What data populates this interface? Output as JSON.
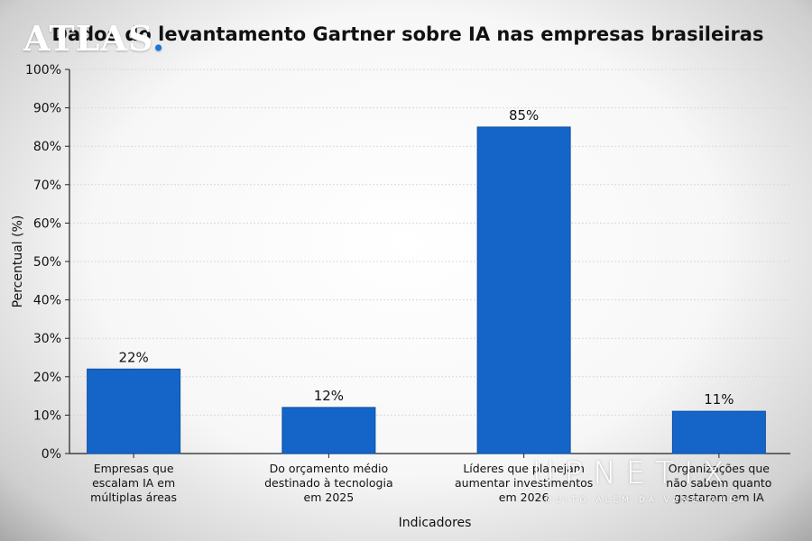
{
  "logos": {
    "atlas": "ATLAS",
    "atlas_dot": ".",
    "upnetix": "UPNETIX",
    "upnetix_tagline": "MUITO ALÉM DA VANGUARDA"
  },
  "colors": {
    "bar": "#1565c8",
    "bar_edge": "#0d4fa3",
    "grid": "#d9d9d9",
    "axis": "#222222"
  },
  "chart_data": {
    "type": "bar",
    "title": "Dados do levantamento Gartner sobre IA nas empresas brasileiras",
    "xlabel": "Indicadores",
    "ylabel": "Percentual (%)",
    "ylim": [
      0,
      100
    ],
    "yticks": [
      "0%",
      "10%",
      "20%",
      "30%",
      "40%",
      "50%",
      "60%",
      "70%",
      "80%",
      "90%",
      "100%"
    ],
    "grid": true,
    "categories": [
      [
        "Empresas que",
        "escalam IA em",
        "múltiplas áreas"
      ],
      [
        "Do orçamento médio",
        "destinado à tecnologia",
        "em 2025"
      ],
      [
        "Líderes que planejam",
        "aumentar investimentos",
        "em 2026"
      ],
      [
        "Organizações que",
        "não sabem quanto",
        "gastaram em IA"
      ]
    ],
    "values": [
      22,
      12,
      85,
      11
    ],
    "data_labels": [
      "22%",
      "12%",
      "85%",
      "11%"
    ]
  }
}
